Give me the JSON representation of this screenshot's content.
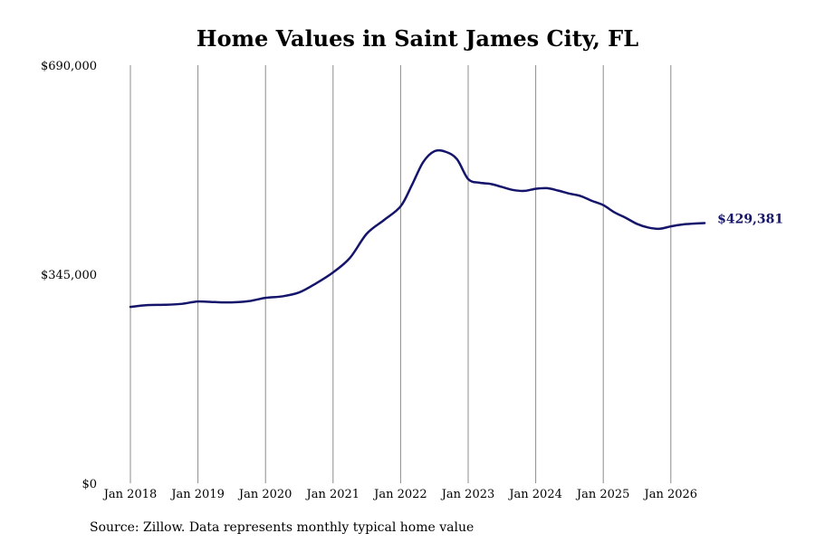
{
  "chart_data": {
    "type": "line",
    "title": "Home Values in Saint James City, FL",
    "xlabel": "",
    "ylabel": "",
    "ylim": [
      0,
      690000
    ],
    "y_ticks": [
      {
        "value": 0,
        "label": "$0"
      },
      {
        "value": 345000,
        "label": "$345,000"
      },
      {
        "value": 690000,
        "label": "$690,000"
      }
    ],
    "x_ticks": [
      {
        "year": 2018,
        "label": "Jan 2018"
      },
      {
        "year": 2019,
        "label": "Jan 2019"
      },
      {
        "year": 2020,
        "label": "Jan 2020"
      },
      {
        "year": 2021,
        "label": "Jan 2021"
      },
      {
        "year": 2022,
        "label": "Jan 2022"
      },
      {
        "year": 2023,
        "label": "Jan 2023"
      },
      {
        "year": 2024,
        "label": "Jan 2024"
      },
      {
        "year": 2025,
        "label": "Jan 2025"
      },
      {
        "year": 2026,
        "label": "Jan 2026"
      }
    ],
    "xlim": [
      "2018-01",
      "2026-07"
    ],
    "grid": "vertical lines at each year",
    "line_color": "#14146b",
    "series": [
      {
        "x": [
          "2018-01",
          "2018-04",
          "2018-07",
          "2018-10",
          "2019-01",
          "2019-04",
          "2019-07",
          "2019-10",
          "2020-01",
          "2020-04",
          "2020-07",
          "2020-10",
          "2021-01",
          "2021-04",
          "2021-07",
          "2021-10",
          "2022-01",
          "2022-03",
          "2022-05",
          "2022-07",
          "2022-09",
          "2022-11",
          "2023-01",
          "2023-03",
          "2023-05",
          "2023-07",
          "2023-09",
          "2023-11",
          "2024-01",
          "2024-03",
          "2024-05",
          "2024-07",
          "2024-09",
          "2024-11",
          "2025-01",
          "2025-03",
          "2025-05",
          "2025-07",
          "2025-09",
          "2025-11",
          "2026-01",
          "2026-03",
          "2026-05",
          "2026-07"
        ],
        "values": [
          291000,
          294000,
          294500,
          296000,
          300000,
          299000,
          298500,
          300500,
          306000,
          308500,
          315000,
          330000,
          348000,
          372000,
          412000,
          434000,
          457000,
          492000,
          530000,
          548000,
          547000,
          535000,
          502000,
          496000,
          494000,
          489000,
          484000,
          482500,
          486000,
          487000,
          483000,
          478000,
          474000,
          466000,
          459000,
          447000,
          438000,
          428000,
          422000,
          420000,
          424000,
          427000,
          428500,
          429381
        ]
      }
    ],
    "annotations": [
      "$429,381"
    ],
    "source": "Source: Zillow. Data represents monthly typical home value"
  }
}
